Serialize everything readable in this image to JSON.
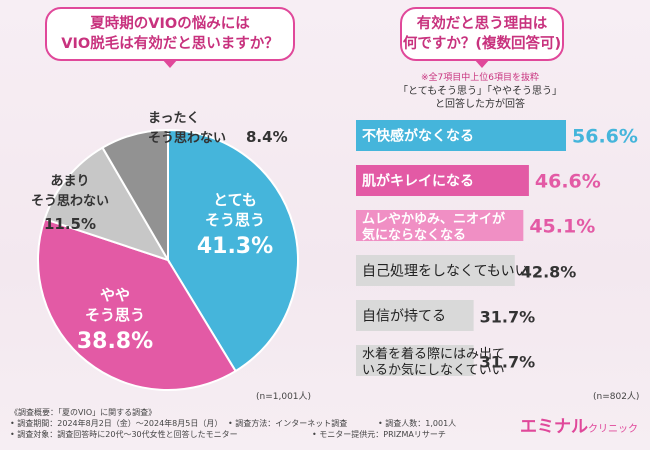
{
  "left": {
    "question_lines": [
      "夏時期のVIOの悩みには",
      "VIO脱毛は有効だと思いますか？"
    ],
    "n_label": "(n=1,001人)"
  },
  "right": {
    "question_lines": [
      "有効だと思う理由は",
      "何ですか？(複数回答可)"
    ],
    "note": "※全7項目中上位6項目を抜粋",
    "note2_lines": [
      "「とてもそう思う」「ややそう思う」",
      "と回答した方が回答"
    ],
    "n_label": "(n=802人)"
  },
  "chart_data": [
    {
      "type": "pie",
      "slices": [
        {
          "label_lines": [
            "とても",
            "そう思う"
          ],
          "value": 41.3,
          "value_label": "41.3%",
          "color": "#45b5db"
        },
        {
          "label_lines": [
            "やや",
            "そう思う"
          ],
          "value": 38.8,
          "value_label": "38.8%",
          "color": "#e35aa5"
        },
        {
          "label_lines": [
            "あまり",
            "そう思わない"
          ],
          "value": 11.5,
          "value_label": "11.5%",
          "color": "#c7c7c7"
        },
        {
          "label_lines": [
            "まったく",
            "そう思わない"
          ],
          "value": 8.4,
          "value_label": "8.4%",
          "color": "#929292"
        }
      ]
    },
    {
      "type": "bar",
      "orientation": "horizontal",
      "xlim": [
        0,
        60
      ],
      "categories": [
        [
          "不快感がなくなる"
        ],
        [
          "肌がキレイになる"
        ],
        [
          "ムレやかゆみ、ニオイが",
          "気にならなくなる"
        ],
        [
          "自己処理をしなくてもいい"
        ],
        [
          "自信が持てる"
        ],
        [
          "水着を着る際にはみ出て",
          "いるか気にしなくていい"
        ]
      ],
      "values": [
        56.6,
        46.6,
        45.1,
        42.8,
        31.7,
        31.7
      ],
      "value_labels": [
        "56.6%",
        "46.6%",
        "45.1%",
        "42.8%",
        "31.7%",
        "31.7%"
      ],
      "colors": [
        "#45b5db",
        "#e35aa5",
        "#f08fc4",
        "#d9d9d9",
        "#d9d9d9",
        "#d9d9d9"
      ]
    }
  ],
  "footer": {
    "lines": [
      "《調査概要：「夏のVIO」に関する調査》",
      "• 調査期間：2024年8月2日（金）～2024年8月5日（月）",
      "• 調査対象：調査回答時に20代～30代女性と回答したモニター"
    ],
    "method": "• 調査方法：インターネット調査",
    "count": "• 調査人数：1,001人",
    "provider": "• モニター提供元：PRIZMAリサーチ"
  },
  "logo": {
    "main": "エミナル",
    "sub": "クリニック"
  }
}
